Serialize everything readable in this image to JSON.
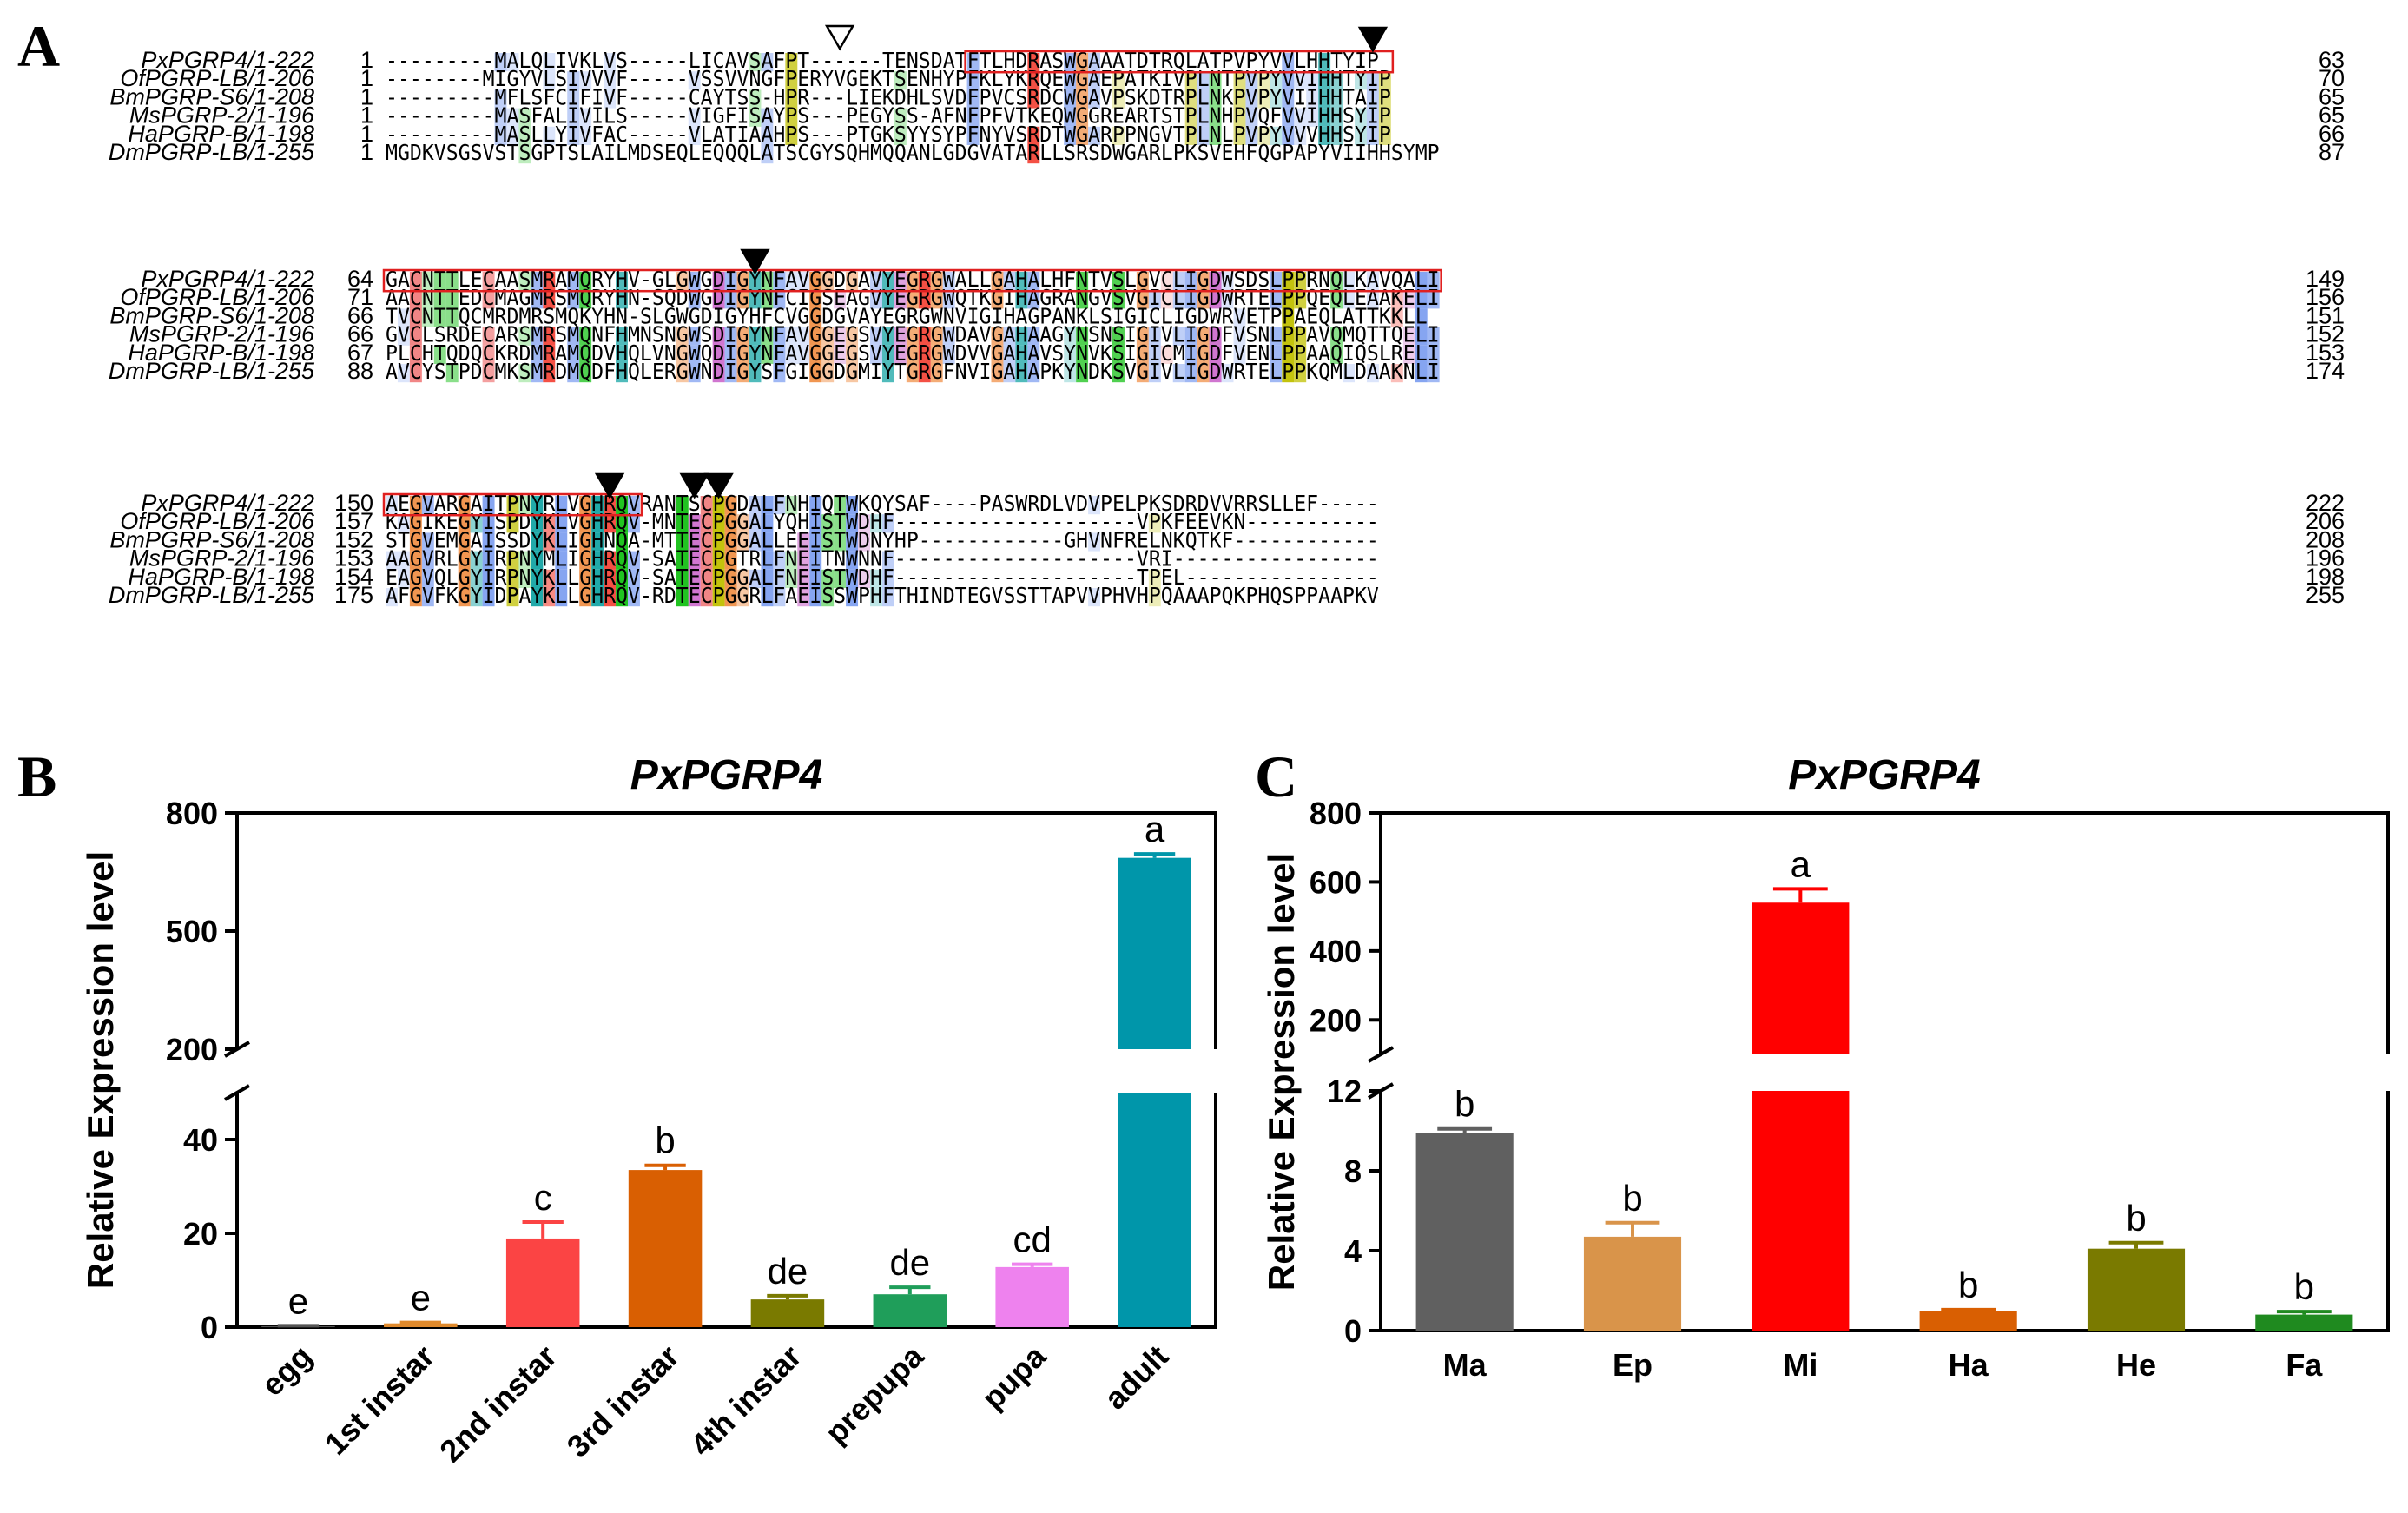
{
  "panels": {
    "a": "A",
    "b": "B",
    "c": "C"
  },
  "alignment": {
    "blocks": [
      {
        "rows": [
          {
            "name": "PxPGRP4/1-222",
            "start": "1",
            "end": "63",
            "seq": "---------MALQLIVKLVS-----LICAVSAFPT------TENSDATFTLHDRASWGAAATDTRQLATPVPYVVLHHTYIP"
          },
          {
            "name": "OfPGRP-LB/1-206",
            "start": "1",
            "end": "70",
            "seq": "--------MIGYVLSIVVVF-----VSSVVNGFPERYVGEKTSENHYPFKLYKRQEWGAEPATKIVPLNTPVPYVVIHHTYIP"
          },
          {
            "name": "BmPGRP-S6/1-208",
            "start": "1",
            "end": "65",
            "seq": "---------MFLSFCIFIVF-----CAYTSS-HPR---LIEKDHLSVDFPVCSRDCWGAVPSKDTRPLNKPVPYVIIHHTAIP"
          },
          {
            "name": "MsPGRP-2/1-196",
            "start": "1",
            "end": "65",
            "seq": "---------MASFALIVILS-----VIGFISAYPS---PEGYSS-AFNFPFVTKEQWGGREARTSTPLNHPVQFVVIHHSYIP"
          },
          {
            "name": "HaPGRP-B/1-198",
            "start": "1",
            "end": "66",
            "seq": "---------MASLLYIVFAC-----VLATIAAHPS---PTGKSYYSYPFNYVSRDTWGARPPNGVTPLNLPVPYVVVHHSYIP"
          },
          {
            "name": "DmPGRP-LB/1-255",
            "start": "1",
            "end": "87",
            "seq": "MGDKVSGSVSTSGPTSLAILMDSEQLEQQQLATSCGYSQHMQQANLGDGVATARLLSRSDWGARLPKSVEHFQGPAPYVIIHHSYMP"
          }
        ]
      },
      {
        "rows": [
          {
            "name": "PxPGRP4/1-222",
            "start": "64",
            "end": "149",
            "seq": "GACNTTLECAASMRAMQRYHV-GLGWGDIGYNFAVGGDGAVYEGRGWALLGAHALHFNTVSLGVCLIGDWSDSLPPRNQLKAVQALI"
          },
          {
            "name": "OfPGRP-LB/1-206",
            "start": "71",
            "end": "156",
            "seq": "AACNTTEDCMAGMRSMQRYHN-SQDWGDIGYNFCIGSEAGVYEGRGWQTKGIHAGRANGVSVGICLIGDWRTELPPQEQLEAAKELI"
          },
          {
            "name": "BmPGRP-S6/1-208",
            "start": "66",
            "end": "151",
            "seq": "TVCNTTQCMRDMRSMQKYHN-SLGWGDIGYHFCVGGDGVAYEGRGWNVIGIHAGPANKLSIGICLIGDWRVETPPAEQLATTKKLL"
          },
          {
            "name": "MsPGRP-2/1-196",
            "start": "66",
            "end": "152",
            "seq": "GVCLSRDECARSMRSMQNFHMNSNGWSDIGYNFAVGGEGSVYEGRGWDAVGAHAAGYNSNSIGIVLIGDFVSNLPPAVQMQTTQELI"
          },
          {
            "name": "HaPGRP-B/1-198",
            "start": "67",
            "end": "153",
            "seq": "PLCHTQDQCKRDMRAMQDVHQLVNGWQDIGYNFAVGGEGSVYEGRGWDVVGAHAVSYNVKSIGICMIGDFVENLPPAAQIQSLRELI"
          },
          {
            "name": "DmPGRP-LB/1-255",
            "start": "88",
            "end": "174",
            "seq": "AVCYSTPDCMKSMRDMQDFHQLERGWNDIGYSFGIGGDGMIYTGRGFNVIGAHAPKYNDKSVGIVLIGDWRTELPPKQMLDAAKNLI"
          }
        ]
      },
      {
        "rows": [
          {
            "name": "PxPGRP4/1-222",
            "start": "150",
            "end": "222",
            "seq": "AEGVARGAITPNYRLVGHRQVRANTSCPGDALFNHIQTWKQYSAF----PASWRDLVDVPELPKSDRDVVRRSLLEF-----"
          },
          {
            "name": "OfPGRP-LB/1-206",
            "start": "157",
            "end": "206",
            "seq": "KAGIKEGYISPDYKLVGHRQV-MNTECPGGALYQHISTWDHF--------------------VPKFEEVKN-----------"
          },
          {
            "name": "BmPGRP-S6/1-208",
            "start": "152",
            "end": "208",
            "seq": "STGVEMGAISSDYKLIGHNQA-MTTECPGGALLEEISTWDNYHP------------GHVNFRELNKQTKF------------"
          },
          {
            "name": "MsPGRP-2/1-196",
            "start": "153",
            "end": "196",
            "seq": "AAGVRLGYIRPNYMLIGHRQV-SATECPGTRLFNEITNWNNF--------------------VRI-----------------"
          },
          {
            "name": "HaPGRP-B/1-198",
            "start": "154",
            "end": "198",
            "seq": "EAGVQLGYIRPNYKLLGHRQV-SATECPGGALFNEISTWDHF--------------------TPEL----------------"
          },
          {
            "name": "DmPGRP-LB/1-255",
            "start": "175",
            "end": "255",
            "seq": "AFGVFKGYIDPAYKLLGHRQV-RDTECPGGRLFAEISSWPHFTHINDTEGVSSTTAPVVPHVHPQAAAPQKPHQSPPAAPKV"
          }
        ]
      }
    ]
  },
  "chart_data": [
    {
      "type": "bar",
      "title": "PxPGRP4",
      "ylabel": "Relative Expression level",
      "categories": [
        "egg",
        "1st instar",
        "2nd instar",
        "3rd instar",
        "4th instar",
        "prepupa",
        "pupa",
        "adult"
      ],
      "values": [
        0.2,
        0.8,
        18.9,
        33.5,
        5.9,
        7.0,
        12.8,
        686
      ],
      "errors": [
        0.1,
        0.2,
        3.5,
        1.0,
        0.8,
        1.5,
        0.6,
        10
      ],
      "letters": [
        "e",
        "e",
        "c",
        "b",
        "de",
        "de",
        "cd",
        "a"
      ],
      "colors": [
        "#555555",
        "#e08a2c",
        "#fb4444",
        "#d95f02",
        "#7a7a00",
        "#1f9e5a",
        "#ee82ee",
        "#0096aa"
      ],
      "y_break": {
        "lower": [
          0,
          50
        ],
        "upper": [
          200,
          800
        ]
      },
      "yticks_lower": [
        "0",
        "20",
        "40"
      ],
      "yticks_upper": [
        "200",
        "500",
        "800"
      ]
    },
    {
      "type": "bar",
      "title": "PxPGRP4",
      "ylabel": "Relative Expression level",
      "categories": [
        "Ma",
        "Ep",
        "Mi",
        "Ha",
        "He",
        "Fa"
      ],
      "values": [
        9.9,
        4.7,
        540,
        1.0,
        4.1,
        0.8
      ],
      "errors": [
        0.2,
        0.7,
        40,
        0.05,
        0.3,
        0.15
      ],
      "letters": [
        "b",
        "b",
        "a",
        "b",
        "b",
        "b"
      ],
      "colors": [
        "#606060",
        "#d9944a",
        "#ff0000",
        "#d95f02",
        "#7a7a00",
        "#1f8a1f"
      ],
      "y_break": {
        "lower": [
          0,
          12
        ],
        "upper": [
          100,
          800
        ]
      },
      "yticks_lower": [
        "0",
        "4",
        "8",
        "12"
      ],
      "yticks_upper": [
        "200",
        "400",
        "600",
        "800"
      ]
    }
  ]
}
